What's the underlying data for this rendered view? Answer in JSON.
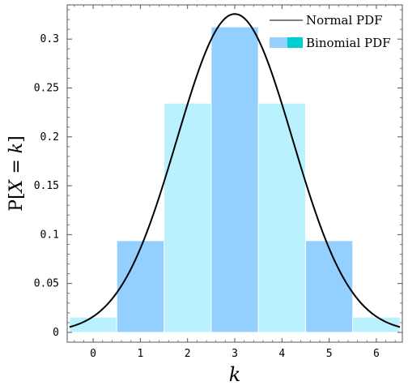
{
  "chart_data": {
    "type": "bar",
    "title": "",
    "xlabel": "k",
    "ylabel": "P[X = k]",
    "ylabel_parts": [
      "P[",
      "X",
      " = ",
      "k",
      "]"
    ],
    "xlim": [
      -0.55,
      6.55
    ],
    "ylim": [
      -0.01,
      0.335
    ],
    "x_ticks": [
      0,
      1,
      2,
      3,
      4,
      5,
      6
    ],
    "y_ticks": [
      0,
      0.05,
      0.1,
      0.15,
      0.2,
      0.25,
      0.3
    ],
    "y_tick_labels": [
      "0",
      "0.05",
      "0.1",
      "0.15",
      "0.2",
      "0.25",
      "0.3"
    ],
    "bars": {
      "name": "Binomial PDF",
      "k": [
        0,
        1,
        2,
        3,
        4,
        5,
        6
      ],
      "values": [
        0.0156,
        0.0938,
        0.2344,
        0.3125,
        0.2344,
        0.0938,
        0.0156
      ],
      "colors": [
        "#b9f1ff",
        "#93cfff",
        "#b9f1ff",
        "#93cfff",
        "#b9f1ff",
        "#93cfff",
        "#b9f1ff"
      ]
    },
    "curve": {
      "name": "Normal PDF",
      "mean": 3,
      "sd": 1.2247,
      "peak": 0.3257,
      "color": "#000000"
    },
    "legend": {
      "placement": "top-right",
      "entries": [
        {
          "label": "Normal PDF",
          "kind": "line",
          "color": "#000000"
        },
        {
          "label": "Binomial PDF",
          "kind": "swatch",
          "colors": [
            "#93cfff",
            "#00cdd0"
          ]
        }
      ]
    },
    "grid": false
  }
}
